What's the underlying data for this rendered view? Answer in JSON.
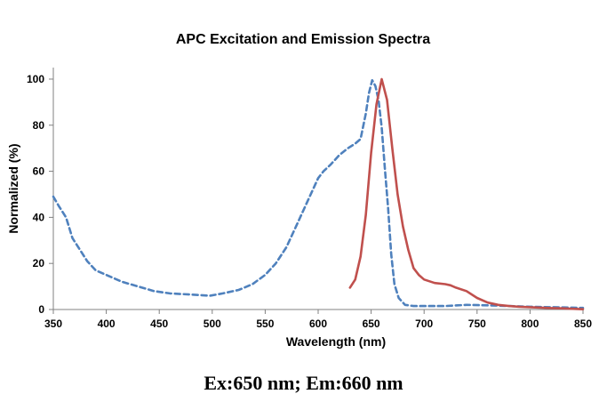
{
  "chart_data": {
    "type": "line",
    "title": "APC Excitation and Emission Spectra",
    "xlabel": "Wavelength (nm)",
    "ylabel": "Normalized (%)",
    "xlim": [
      350,
      850
    ],
    "ylim": [
      0,
      105
    ],
    "xticks": [
      350,
      400,
      450,
      500,
      550,
      600,
      650,
      700,
      750,
      800,
      850
    ],
    "yticks": [
      0,
      20,
      40,
      60,
      80,
      100
    ],
    "grid": false,
    "series": [
      {
        "name": "Excitation",
        "style": "dashed",
        "color": "#4F81BD",
        "x": [
          350,
          355,
          362,
          368,
          375,
          382,
          390,
          400,
          415,
          430,
          445,
          460,
          480,
          498,
          510,
          525,
          538,
          550,
          560,
          570,
          580,
          590,
          600,
          605,
          612,
          620,
          628,
          635,
          640,
          645,
          648,
          651,
          654,
          657,
          660,
          663,
          666,
          669,
          672,
          676,
          682,
          690,
          700,
          720,
          740,
          760,
          780,
          800,
          820,
          840,
          850
        ],
        "values": [
          49,
          45,
          40,
          31,
          26,
          21,
          17,
          15,
          12,
          10,
          8,
          7,
          6.5,
          6,
          7,
          8.5,
          11,
          15,
          20,
          27,
          37,
          47,
          57,
          60,
          63,
          67,
          70,
          72,
          74,
          85,
          94,
          99.5,
          97,
          91,
          79,
          61,
          44,
          24,
          11,
          5,
          2,
          1.5,
          1.5,
          1.5,
          2,
          1.8,
          1.5,
          1.2,
          1,
          0.8,
          0.7
        ]
      },
      {
        "name": "Emission",
        "style": "solid",
        "color": "#C0504D",
        "x": [
          630,
          635,
          640,
          645,
          650,
          655,
          660,
          665,
          670,
          675,
          680,
          685,
          690,
          695,
          700,
          710,
          720,
          725,
          730,
          740,
          750,
          760,
          770,
          780,
          790,
          800,
          810,
          820,
          830,
          840,
          850
        ],
        "values": [
          9.5,
          13,
          23,
          41,
          68,
          89,
          100,
          91,
          70,
          50,
          36,
          26,
          18,
          15,
          13,
          11.5,
          11,
          10.5,
          9.5,
          8,
          5,
          3,
          2,
          1.5,
          1.2,
          1,
          0.8,
          0.6,
          0.5,
          0.3,
          0.1
        ]
      }
    ]
  },
  "caption": "Ex:650 nm; Em:660 nm"
}
